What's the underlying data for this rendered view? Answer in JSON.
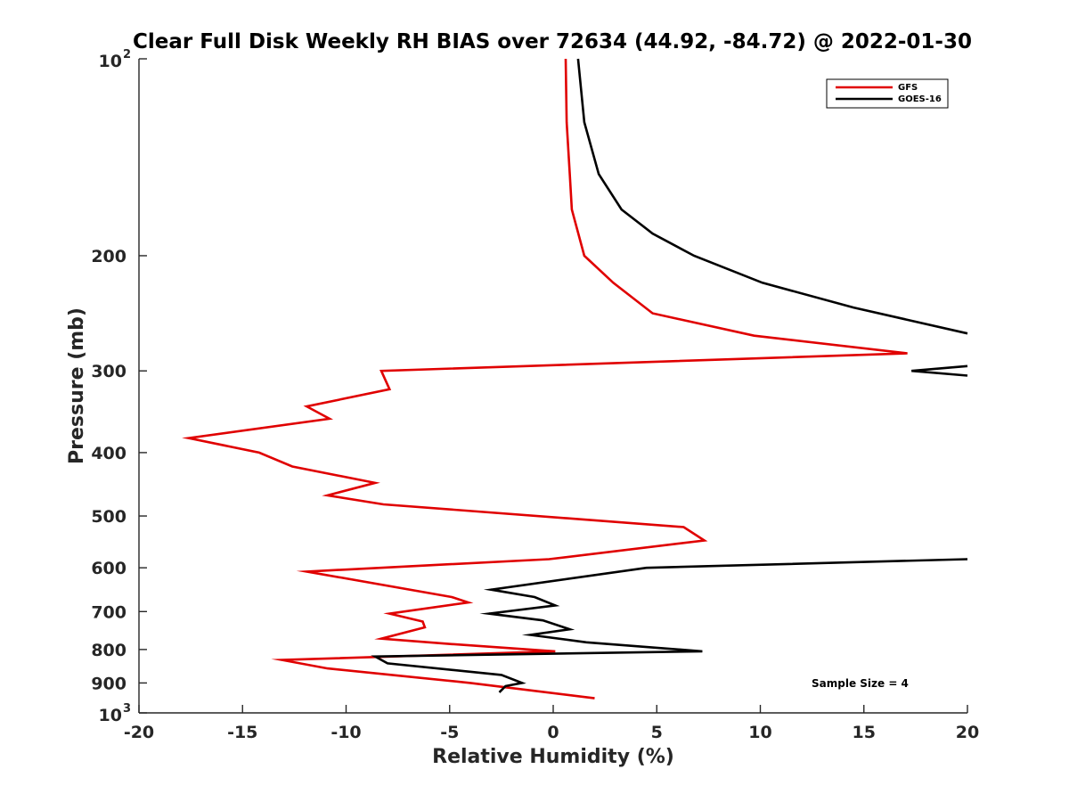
{
  "chart_data": {
    "type": "line",
    "title": "Clear Full Disk Weekly RH BIAS over 72634 (44.92, -84.72) @ 2022-01-30",
    "xlabel": "Relative Humidity (%)",
    "ylabel": "Pressure (mb)",
    "xlim": [
      -20,
      20
    ],
    "ylim": [
      100,
      1000
    ],
    "yscale": "log",
    "y_reversed": true,
    "grid": false,
    "x_ticks": [
      {
        "value": -20,
        "label": "-20"
      },
      {
        "value": -15,
        "label": "-15"
      },
      {
        "value": -10,
        "label": "-10"
      },
      {
        "value": -5,
        "label": "-5"
      },
      {
        "value": 0,
        "label": "0"
      },
      {
        "value": 5,
        "label": "5"
      },
      {
        "value": 10,
        "label": "10"
      },
      {
        "value": 15,
        "label": "15"
      },
      {
        "value": 20,
        "label": "20"
      }
    ],
    "y_ticks": [
      {
        "value": 100,
        "base": "10",
        "exp": "2"
      },
      {
        "value": 200,
        "label": "200"
      },
      {
        "value": 300,
        "label": "300"
      },
      {
        "value": 400,
        "label": "400"
      },
      {
        "value": 500,
        "label": "500"
      },
      {
        "value": 600,
        "label": "600"
      },
      {
        "value": 700,
        "label": "700"
      },
      {
        "value": 800,
        "label": "800"
      },
      {
        "value": 900,
        "label": "900"
      },
      {
        "value": 1000,
        "base": "10",
        "exp": "3"
      }
    ],
    "legend_position": "top-right",
    "annotation": "Sample Size = 4",
    "series": [
      {
        "name": "GFS",
        "color": "#e00000",
        "points": [
          [
            0.6,
            100
          ],
          [
            0.65,
            125
          ],
          [
            0.8,
            150
          ],
          [
            0.9,
            170
          ],
          [
            1.5,
            200
          ],
          [
            2.9,
            220
          ],
          [
            4.8,
            245
          ],
          [
            9.7,
            265
          ],
          [
            17.1,
            282
          ],
          [
            -8.3,
            300
          ],
          [
            -7.9,
            320
          ],
          [
            -11.9,
            340
          ],
          [
            -10.8,
            355
          ],
          [
            -17.6,
            380
          ],
          [
            -14.2,
            400
          ],
          [
            -12.6,
            420
          ],
          [
            -8.6,
            445
          ],
          [
            -10.9,
            465
          ],
          [
            -8.2,
            480
          ],
          [
            6.3,
            520
          ],
          [
            7.3,
            545
          ],
          [
            -0.2,
            582
          ],
          [
            -11.9,
            608
          ],
          [
            -4.9,
            665
          ],
          [
            -4.1,
            678
          ],
          [
            -7.9,
            705
          ],
          [
            -6.3,
            725
          ],
          [
            -6.2,
            740
          ],
          [
            -8.3,
            770
          ],
          [
            -4.9,
            785
          ],
          [
            0.1,
            805
          ],
          [
            -13.1,
            830
          ],
          [
            -10.9,
            855
          ],
          [
            -4.0,
            900
          ],
          [
            2.0,
            950
          ]
        ]
      },
      {
        "name": "GOES-16",
        "color": "#000000",
        "points": [
          [
            1.2,
            100
          ],
          [
            1.5,
            125
          ],
          [
            2.2,
            150
          ],
          [
            3.3,
            170
          ],
          [
            4.8,
            185
          ],
          [
            6.8,
            200
          ],
          [
            10.1,
            220
          ],
          [
            14.5,
            240
          ],
          [
            20.0,
            263
          ],
          [
            null,
            275
          ],
          [
            20.0,
            295
          ],
          [
            17.3,
            300
          ],
          [
            20.0,
            305
          ],
          [
            null,
            320
          ],
          [
            20.0,
            582
          ],
          [
            4.5,
            600
          ],
          [
            -3.0,
            648
          ],
          [
            -0.9,
            665
          ],
          [
            0.1,
            685
          ],
          [
            -3.1,
            705
          ],
          [
            -0.5,
            722
          ],
          [
            0.8,
            745
          ],
          [
            -1.1,
            760
          ],
          [
            1.6,
            780
          ],
          [
            7.2,
            805
          ],
          [
            -8.6,
            820
          ],
          [
            -8.0,
            840
          ],
          [
            -2.5,
            875
          ],
          [
            -1.5,
            900
          ],
          [
            -2.3,
            910
          ],
          [
            -2.6,
            930
          ]
        ]
      }
    ]
  }
}
